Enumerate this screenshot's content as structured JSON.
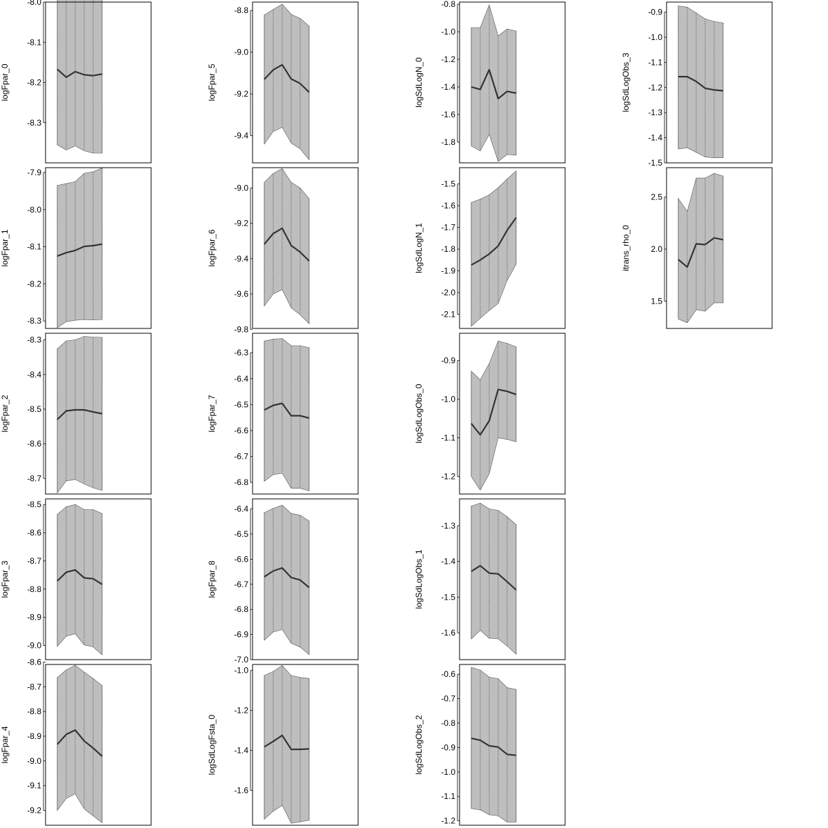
{
  "chart_data": [
    {
      "type": "area",
      "ylabel": "logFpar_0",
      "x": [
        1,
        2,
        3,
        4,
        5,
        6
      ],
      "ylim": [
        -8.4,
        -8.0
      ],
      "yticks": [
        "-8.0",
        "-8.1",
        "-8.2",
        "-8.3"
      ],
      "mean": [
        -8.167,
        -8.187,
        -8.173,
        -8.181,
        -8.183,
        -8.179
      ],
      "lower": [
        -8.355,
        -8.368,
        -8.358,
        -8.37,
        -8.376,
        -8.376
      ],
      "upper": [
        -7.977,
        -7.992,
        -7.982,
        -7.982,
        -7.981,
        -7.976
      ]
    },
    {
      "type": "area",
      "ylabel": "logFpar_1",
      "x": [
        1,
        2,
        3,
        4,
        5,
        6
      ],
      "ylim": [
        -8.32,
        -7.887
      ],
      "yticks": [
        "-7.9",
        "-8.0",
        "-8.1",
        "-8.2",
        "-8.3"
      ],
      "mean": [
        -8.125,
        -8.116,
        -8.11,
        -8.099,
        -8.097,
        -8.093
      ],
      "lower": [
        -8.318,
        -8.302,
        -8.298,
        -8.296,
        -8.297,
        -8.296
      ],
      "upper": [
        -7.935,
        -7.93,
        -7.925,
        -7.902,
        -7.898,
        -7.888
      ]
    },
    {
      "type": "area",
      "ylabel": "logFpar_2",
      "x": [
        1,
        2,
        3,
        4,
        5,
        6
      ],
      "ylim": [
        -8.745,
        -8.281
      ],
      "yticks": [
        "-8.3",
        "-8.4",
        "-8.5",
        "-8.6",
        "-8.7"
      ],
      "mean": [
        -8.53,
        -8.505,
        -8.502,
        -8.502,
        -8.508,
        -8.513
      ],
      "lower": [
        -8.742,
        -8.707,
        -8.703,
        -8.716,
        -8.727,
        -8.735
      ],
      "upper": [
        -8.326,
        -8.303,
        -8.3,
        -8.29,
        -8.292,
        -8.293
      ]
    },
    {
      "type": "area",
      "ylabel": "logFpar_3",
      "x": [
        1,
        2,
        3,
        4,
        5,
        6
      ],
      "ylim": [
        -9.05,
        -8.48
      ],
      "yticks": [
        "-8.5",
        "-8.6",
        "-8.7",
        "-8.8",
        "-8.9",
        "-9.0"
      ],
      "mean": [
        -8.771,
        -8.74,
        -8.732,
        -8.76,
        -8.763,
        -8.783
      ],
      "lower": [
        -9.003,
        -8.967,
        -8.958,
        -8.998,
        -9.005,
        -9.033
      ],
      "upper": [
        -8.535,
        -8.508,
        -8.5,
        -8.518,
        -8.518,
        -8.532
      ]
    },
    {
      "type": "area",
      "ylabel": "logFpar_4",
      "x": [
        1,
        2,
        3,
        4,
        5,
        6
      ],
      "ylim": [
        -9.26,
        -8.61
      ],
      "yticks": [
        "-8.6",
        "-8.7",
        "-8.8",
        "-8.9",
        "-9.0",
        "-9.1",
        "-9.2"
      ],
      "mean": [
        -8.933,
        -8.893,
        -8.875,
        -8.919,
        -8.948,
        -8.981
      ],
      "lower": [
        -9.2,
        -9.152,
        -9.133,
        -9.194,
        -9.222,
        -9.25
      ],
      "upper": [
        -8.663,
        -8.632,
        -8.613,
        -8.641,
        -8.667,
        -8.695
      ]
    },
    {
      "type": "area",
      "ylabel": "logFpar_5",
      "x": [
        1,
        2,
        3,
        4,
        5,
        6
      ],
      "ylim": [
        -9.53,
        -8.76
      ],
      "yticks": [
        "-8.8",
        "-9.0",
        "-9.2",
        "-9.4"
      ],
      "mean": [
        -9.13,
        -9.085,
        -9.06,
        -9.128,
        -9.15,
        -9.192
      ],
      "lower": [
        -9.44,
        -9.38,
        -9.36,
        -9.435,
        -9.463,
        -9.515
      ],
      "upper": [
        -8.822,
        -8.795,
        -8.77,
        -8.818,
        -8.838,
        -8.875
      ]
    },
    {
      "type": "area",
      "ylabel": "logFpar_6",
      "x": [
        1,
        2,
        3,
        4,
        5,
        6
      ],
      "ylim": [
        -9.795,
        -8.885
      ],
      "yticks": [
        "-9.0",
        "-9.2",
        "-9.4",
        "-9.6",
        "-9.8"
      ],
      "mean": [
        -9.318,
        -9.258,
        -9.228,
        -9.325,
        -9.363,
        -9.413
      ],
      "lower": [
        -9.668,
        -9.6,
        -9.575,
        -9.678,
        -9.718,
        -9.768
      ],
      "upper": [
        -8.968,
        -8.918,
        -8.89,
        -8.968,
        -9.0,
        -9.06
      ]
    },
    {
      "type": "area",
      "ylabel": "logFpar_7",
      "x": [
        1,
        2,
        3,
        4,
        5,
        6
      ],
      "ylim": [
        -6.845,
        -6.225
      ],
      "yticks": [
        "-6.3",
        "-6.4",
        "-6.5",
        "-6.6",
        "-6.7",
        "-6.8"
      ],
      "mean": [
        -6.521,
        -6.503,
        -6.495,
        -6.543,
        -6.543,
        -6.552
      ],
      "lower": [
        -6.796,
        -6.77,
        -6.765,
        -6.823,
        -6.823,
        -6.833
      ],
      "upper": [
        -6.255,
        -6.248,
        -6.245,
        -6.273,
        -6.273,
        -6.28
      ]
    },
    {
      "type": "area",
      "ylabel": "logFpar_8",
      "x": [
        1,
        2,
        3,
        4,
        5,
        6
      ],
      "ylim": [
        -7.0,
        -6.36
      ],
      "yticks": [
        "-6.4",
        "-6.5",
        "-6.6",
        "-6.7",
        "-6.8",
        "-6.9",
        "-7.0"
      ],
      "mean": [
        -6.67,
        -6.647,
        -6.635,
        -6.673,
        -6.683,
        -6.713
      ],
      "lower": [
        -6.923,
        -6.89,
        -6.88,
        -6.935,
        -6.95,
        -6.98
      ],
      "upper": [
        -6.415,
        -6.398,
        -6.385,
        -6.418,
        -6.425,
        -6.448
      ]
    },
    {
      "type": "area",
      "ylabel": "logSdLogFsta_0",
      "x": [
        1,
        2,
        3,
        4,
        5,
        6
      ],
      "ylim": [
        -1.775,
        -0.97
      ],
      "yticks": [
        "-1.0",
        "-1.2",
        "-1.4",
        "-1.6"
      ],
      "mean": [
        -1.383,
        -1.355,
        -1.325,
        -1.395,
        -1.395,
        -1.393
      ],
      "lower": [
        -1.745,
        -1.705,
        -1.675,
        -1.765,
        -1.758,
        -1.75
      ],
      "upper": [
        -1.025,
        -1.005,
        -0.975,
        -1.025,
        -1.035,
        -1.04
      ]
    },
    {
      "type": "area",
      "ylabel": "logSdLogN_0",
      "x": [
        1,
        2,
        3,
        4,
        5,
        6
      ],
      "ylim": [
        -1.95,
        -0.785
      ],
      "yticks": [
        "-0.8",
        "-1.0",
        "-1.2",
        "-1.4",
        "-1.6",
        "-1.8"
      ],
      "mean": [
        -1.4,
        -1.418,
        -1.275,
        -1.485,
        -1.432,
        -1.445
      ],
      "lower": [
        -1.828,
        -1.863,
        -1.745,
        -1.94,
        -1.89,
        -1.895
      ],
      "upper": [
        -0.97,
        -0.97,
        -0.805,
        -1.03,
        -0.98,
        -0.995
      ]
    },
    {
      "type": "area",
      "ylabel": "logSdLogN_1",
      "x": [
        1,
        2,
        3,
        4,
        5,
        6
      ],
      "ylim": [
        -2.165,
        -1.425
      ],
      "yticks": [
        "-1.5",
        "-1.6",
        "-1.7",
        "-1.8",
        "-1.9",
        "-2.0",
        "-2.1"
      ],
      "mean": [
        -1.873,
        -1.85,
        -1.822,
        -1.785,
        -1.713,
        -1.655
      ],
      "lower": [
        -2.155,
        -2.118,
        -2.083,
        -2.05,
        -1.945,
        -1.87
      ],
      "upper": [
        -1.585,
        -1.57,
        -1.55,
        -1.517,
        -1.477,
        -1.44
      ]
    },
    {
      "type": "area",
      "ylabel": "logSdLogObs_0",
      "x": [
        1,
        2,
        3,
        4,
        5,
        6
      ],
      "ylim": [
        -1.245,
        -0.83
      ],
      "yticks": [
        "-0.9",
        "-1.0",
        "-1.1",
        "-1.2"
      ],
      "mean": [
        -1.063,
        -1.092,
        -1.056,
        -0.975,
        -0.98,
        -0.988
      ],
      "lower": [
        -1.2,
        -1.235,
        -1.193,
        -1.1,
        -1.104,
        -1.11
      ],
      "upper": [
        -0.928,
        -0.95,
        -0.908,
        -0.85,
        -0.856,
        -0.865
      ]
    },
    {
      "type": "area",
      "ylabel": "logSdLogObs_1",
      "x": [
        1,
        2,
        3,
        4,
        5,
        6
      ],
      "ylim": [
        -1.675,
        -1.225
      ],
      "yticks": [
        "-1.3",
        "-1.4",
        "-1.5",
        "-1.6"
      ],
      "mean": [
        -1.428,
        -1.412,
        -1.433,
        -1.435,
        -1.457,
        -1.48
      ],
      "lower": [
        -1.617,
        -1.593,
        -1.615,
        -1.617,
        -1.637,
        -1.66
      ],
      "upper": [
        -1.245,
        -1.237,
        -1.253,
        -1.257,
        -1.275,
        -1.297
      ]
    },
    {
      "type": "area",
      "ylabel": "logSdLogObs_2",
      "x": [
        1,
        2,
        3,
        4,
        5,
        6
      ],
      "ylim": [
        -1.218,
        -0.56
      ],
      "yticks": [
        "-0.6",
        "-0.7",
        "-0.8",
        "-0.9",
        "-1.0",
        "-1.1",
        "-1.2"
      ],
      "mean": [
        -0.862,
        -0.87,
        -0.893,
        -0.898,
        -0.928,
        -0.932
      ],
      "lower": [
        -1.15,
        -1.155,
        -1.175,
        -1.18,
        -1.205,
        -1.205
      ],
      "upper": [
        -0.572,
        -0.583,
        -0.612,
        -0.618,
        -0.655,
        -0.662
      ]
    },
    {
      "type": "area",
      "ylabel": "logSdLogObs_3",
      "x": [
        1,
        2,
        3,
        4,
        5,
        6
      ],
      "ylim": [
        -1.5,
        -0.86
      ],
      "yticks": [
        "-0.9",
        "-1.0",
        "-1.1",
        "-1.2",
        "-1.3",
        "-1.4",
        "-1.5"
      ],
      "mean": [
        -1.157,
        -1.157,
        -1.176,
        -1.203,
        -1.21,
        -1.213
      ],
      "lower": [
        -1.445,
        -1.44,
        -1.458,
        -1.477,
        -1.48,
        -1.48
      ],
      "upper": [
        -0.875,
        -0.88,
        -0.903,
        -0.927,
        -0.937,
        -0.943
      ]
    },
    {
      "type": "area",
      "ylabel": "itrans_rho_0",
      "x": [
        1,
        2,
        3,
        4,
        5,
        6
      ],
      "ylim": [
        1.24,
        2.78
      ],
      "yticks": [
        "1.5",
        "2.0",
        "2.5"
      ],
      "mean": [
        1.9,
        1.828,
        2.05,
        2.043,
        2.108,
        2.09
      ],
      "lower": [
        1.33,
        1.295,
        1.42,
        1.405,
        1.485,
        1.485
      ],
      "upper": [
        2.485,
        2.362,
        2.68,
        2.68,
        2.725,
        2.7
      ]
    }
  ]
}
